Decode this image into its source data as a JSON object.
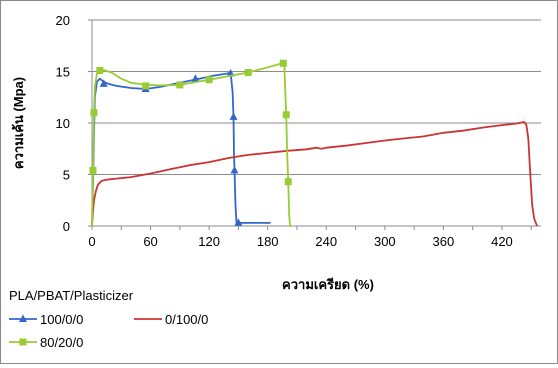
{
  "chart_data": {
    "type": "line",
    "title": "",
    "xlabel": "ความเครียด (%)",
    "ylabel": "ความเค้น (Mpa)",
    "xlim": [
      0,
      460
    ],
    "ylim": [
      0,
      20
    ],
    "x_ticks": [
      0,
      60,
      120,
      180,
      240,
      300,
      360,
      420
    ],
    "y_ticks": [
      0,
      5,
      10,
      15,
      20
    ],
    "grid": "horizontal",
    "legend": {
      "title": "PLA/PBAT/Plasticizer",
      "placement": "bottom-left"
    },
    "series": [
      {
        "name": "100/0/0",
        "color": "#3366cc",
        "marker": "triangle",
        "points": [
          [
            0,
            0
          ],
          [
            1,
            4
          ],
          [
            2,
            9
          ],
          [
            3,
            12.5
          ],
          [
            5,
            14
          ],
          [
            8,
            14.3
          ],
          [
            12,
            14
          ],
          [
            17,
            13.8
          ],
          [
            25,
            13.6
          ],
          [
            40,
            13.4
          ],
          [
            55,
            13.3
          ],
          [
            70,
            13.5
          ],
          [
            90,
            13.9
          ],
          [
            110,
            14.3
          ],
          [
            125,
            14.6
          ],
          [
            138,
            14.8
          ],
          [
            142,
            14.9
          ],
          [
            144,
            13
          ],
          [
            145,
            10.6
          ],
          [
            145.5,
            7
          ],
          [
            146,
            5.4
          ],
          [
            147,
            2
          ],
          [
            148,
            0.3
          ],
          [
            160,
            0.3
          ],
          [
            175,
            0.3
          ],
          [
            183,
            0.3
          ]
        ],
        "markers": [
          [
            12,
            13.8
          ],
          [
            55,
            13.3
          ],
          [
            106,
            14.3
          ],
          [
            142,
            14.8
          ],
          [
            145,
            10.6
          ],
          [
            146,
            5.4
          ],
          [
            150,
            0.3
          ]
        ]
      },
      {
        "name": "0/100/0",
        "color": "#cc3333",
        "marker": "none",
        "points": [
          [
            0,
            0
          ],
          [
            1,
            1.5
          ],
          [
            2,
            2.5
          ],
          [
            4,
            3.4
          ],
          [
            6,
            4
          ],
          [
            10,
            4.4
          ],
          [
            15,
            4.5
          ],
          [
            25,
            4.6
          ],
          [
            40,
            4.75
          ],
          [
            60,
            5.1
          ],
          [
            80,
            5.5
          ],
          [
            100,
            5.9
          ],
          [
            120,
            6.2
          ],
          [
            140,
            6.6
          ],
          [
            160,
            6.9
          ],
          [
            180,
            7.1
          ],
          [
            200,
            7.3
          ],
          [
            220,
            7.45
          ],
          [
            230,
            7.6
          ],
          [
            235,
            7.5
          ],
          [
            240,
            7.6
          ],
          [
            260,
            7.8
          ],
          [
            280,
            8.05
          ],
          [
            300,
            8.3
          ],
          [
            320,
            8.5
          ],
          [
            340,
            8.7
          ],
          [
            360,
            9.05
          ],
          [
            380,
            9.25
          ],
          [
            400,
            9.55
          ],
          [
            420,
            9.8
          ],
          [
            435,
            9.95
          ],
          [
            443,
            10.1
          ],
          [
            445,
            9.8
          ],
          [
            447,
            8.5
          ],
          [
            449,
            5
          ],
          [
            451,
            2
          ],
          [
            453,
            0.7
          ],
          [
            456,
            0
          ]
        ],
        "markers": []
      },
      {
        "name": "80/20/0",
        "color": "#99cc33",
        "marker": "square",
        "points": [
          [
            0,
            0
          ],
          [
            1,
            5.4
          ],
          [
            2,
            11
          ],
          [
            3,
            13.5
          ],
          [
            5,
            14.8
          ],
          [
            8,
            15.2
          ],
          [
            12,
            15.15
          ],
          [
            20,
            14.9
          ],
          [
            30,
            14.3
          ],
          [
            40,
            13.9
          ],
          [
            55,
            13.7
          ],
          [
            70,
            13.65
          ],
          [
            90,
            13.7
          ],
          [
            105,
            13.95
          ],
          [
            120,
            14.2
          ],
          [
            140,
            14.55
          ],
          [
            160,
            14.9
          ],
          [
            180,
            15.4
          ],
          [
            195,
            15.8
          ],
          [
            197,
            15.8
          ],
          [
            198,
            13
          ],
          [
            199,
            10.8
          ],
          [
            200,
            7
          ],
          [
            201,
            4.3
          ],
          [
            202,
            1
          ],
          [
            203,
            0
          ],
          [
            204,
            0
          ]
        ],
        "markers": [
          [
            1,
            5.4
          ],
          [
            2,
            11
          ],
          [
            8,
            15.1
          ],
          [
            55,
            13.6
          ],
          [
            90,
            13.7
          ],
          [
            120,
            14.2
          ],
          [
            160,
            14.9
          ],
          [
            196,
            15.8
          ],
          [
            199,
            10.8
          ],
          [
            201,
            4.3
          ]
        ]
      }
    ]
  }
}
